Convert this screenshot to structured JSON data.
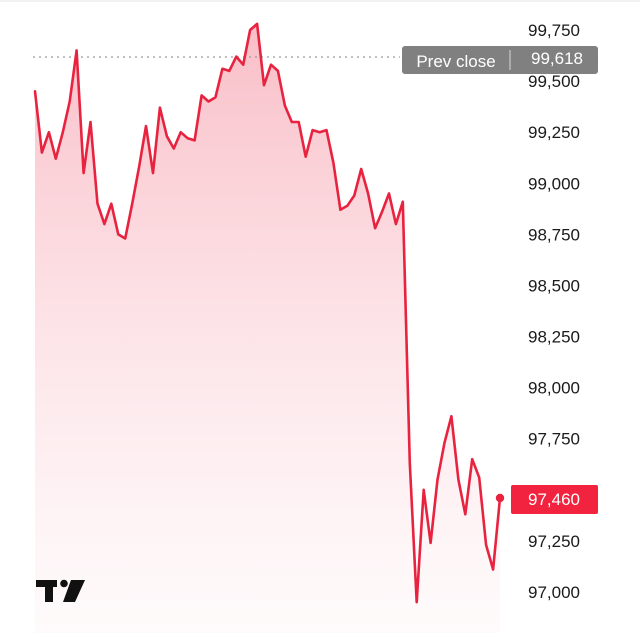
{
  "chart_data": {
    "type": "area",
    "title": "",
    "xlabel": "",
    "ylabel": "",
    "ylim": [
      96900,
      99850
    ],
    "yticks": [
      "99,750",
      "99,500",
      "99,250",
      "99,000",
      "98,750",
      "98,500",
      "98,250",
      "98,000",
      "97,750",
      "97,250",
      "97,000"
    ],
    "grid": false,
    "legend": "none",
    "series": [
      {
        "values": [
          99450,
          99150,
          99250,
          99120,
          99250,
          99400,
          99650,
          99050,
          99300,
          98900,
          98800,
          98900,
          98750,
          98730,
          98900,
          99080,
          99280,
          99050,
          99370,
          99230,
          99170,
          99250,
          99220,
          99210,
          99430,
          99400,
          99420,
          99560,
          99550,
          99620,
          99580,
          99750,
          99780,
          99480,
          99580,
          99550,
          99380,
          99300,
          99300,
          99130,
          99260,
          99250,
          99260,
          99100,
          98870,
          98890,
          98940,
          99070,
          98950,
          98780,
          98860,
          98950,
          98800,
          98910,
          97630,
          96950,
          97500,
          97240,
          97550,
          97730,
          97860,
          97550,
          97380,
          97650,
          97560,
          97230,
          97110,
          97460
        ]
      }
    ],
    "previous_close": {
      "label": "Prev close",
      "value": "99,618"
    },
    "last_price": {
      "value": "97,460"
    },
    "colors": {
      "line": "#e8233f",
      "fill_top": "#f7a8b4",
      "fill_bottom": "#fef2f4",
      "prev_tag": "#808080",
      "last_tag": "#f2233e"
    }
  },
  "brand": {
    "icon": "tradingview-logo"
  }
}
